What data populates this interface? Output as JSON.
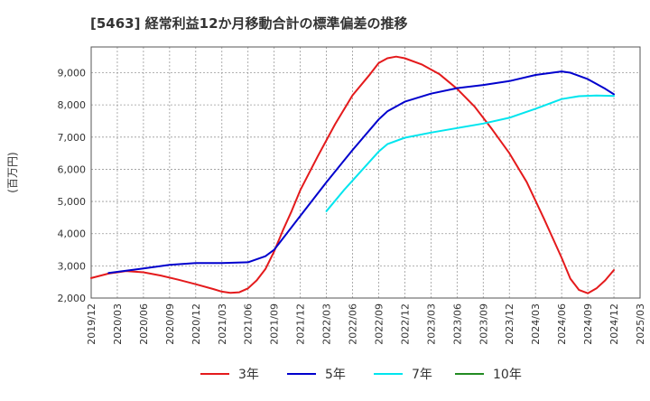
{
  "chart_data": {
    "type": "line",
    "title": "[5463]  経常利益12か月移動合計の標準偏差の推移",
    "ylabel": "(百万円)",
    "xlabel": "",
    "ylim": [
      2000,
      9800
    ],
    "yticks": [
      2000,
      3000,
      4000,
      5000,
      6000,
      7000,
      8000,
      9000
    ],
    "ytick_labels": [
      "2,000",
      "3,000",
      "4,000",
      "5,000",
      "6,000",
      "7,000",
      "8,000",
      "9,000"
    ],
    "xlim": [
      "2019-12",
      "2025-03"
    ],
    "xticks": [
      "2019/12",
      "2020/03",
      "2020/06",
      "2020/09",
      "2020/12",
      "2021/03",
      "2021/06",
      "2021/09",
      "2021/12",
      "2022/03",
      "2022/06",
      "2022/09",
      "2022/12",
      "2023/03",
      "2023/06",
      "2023/09",
      "2023/12",
      "2024/03",
      "2024/06",
      "2024/09",
      "2024/12",
      "2025/03"
    ],
    "grid": true,
    "legend_position": "bottom",
    "series": [
      {
        "name": "3年",
        "color": "#e41a1c",
        "points": [
          [
            "2019-12",
            2620
          ],
          [
            "2020-02",
            2760
          ],
          [
            "2020-04",
            2840
          ],
          [
            "2020-06",
            2800
          ],
          [
            "2020-08",
            2700
          ],
          [
            "2020-10",
            2570
          ],
          [
            "2020-12",
            2430
          ],
          [
            "2021-02",
            2280
          ],
          [
            "2021-03",
            2200
          ],
          [
            "2021-04",
            2160
          ],
          [
            "2021-05",
            2180
          ],
          [
            "2021-06",
            2300
          ],
          [
            "2021-07",
            2550
          ],
          [
            "2021-08",
            2900
          ],
          [
            "2021-09",
            3450
          ],
          [
            "2021-10",
            4100
          ],
          [
            "2021-11",
            4700
          ],
          [
            "2021-12",
            5350
          ],
          [
            "2022-02",
            6400
          ],
          [
            "2022-04",
            7400
          ],
          [
            "2022-06",
            8300
          ],
          [
            "2022-08",
            8950
          ],
          [
            "2022-09",
            9300
          ],
          [
            "2022-10",
            9450
          ],
          [
            "2022-11",
            9500
          ],
          [
            "2022-12",
            9450
          ],
          [
            "2023-02",
            9250
          ],
          [
            "2023-04",
            8950
          ],
          [
            "2023-06",
            8500
          ],
          [
            "2023-08",
            7950
          ],
          [
            "2023-10",
            7250
          ],
          [
            "2023-12",
            6500
          ],
          [
            "2024-02",
            5600
          ],
          [
            "2024-04",
            4450
          ],
          [
            "2024-06",
            3250
          ],
          [
            "2024-07",
            2600
          ],
          [
            "2024-08",
            2250
          ],
          [
            "2024-09",
            2150
          ],
          [
            "2024-10",
            2300
          ],
          [
            "2024-11",
            2550
          ],
          [
            "2024-12",
            2870
          ]
        ]
      },
      {
        "name": "5年",
        "color": "#0000cd",
        "points": [
          [
            "2020-02",
            2780
          ],
          [
            "2020-06",
            2920
          ],
          [
            "2020-09",
            3030
          ],
          [
            "2020-12",
            3090
          ],
          [
            "2021-03",
            3090
          ],
          [
            "2021-06",
            3110
          ],
          [
            "2021-08",
            3300
          ],
          [
            "2021-09",
            3500
          ],
          [
            "2021-10",
            3850
          ],
          [
            "2021-12",
            4550
          ],
          [
            "2022-03",
            5600
          ],
          [
            "2022-06",
            6600
          ],
          [
            "2022-09",
            7550
          ],
          [
            "2022-10",
            7800
          ],
          [
            "2022-12",
            8100
          ],
          [
            "2023-03",
            8350
          ],
          [
            "2023-06",
            8520
          ],
          [
            "2023-09",
            8620
          ],
          [
            "2023-12",
            8740
          ],
          [
            "2024-03",
            8930
          ],
          [
            "2024-06",
            9040
          ],
          [
            "2024-07",
            9000
          ],
          [
            "2024-09",
            8800
          ],
          [
            "2024-11",
            8500
          ],
          [
            "2024-12",
            8330
          ]
        ]
      },
      {
        "name": "7年",
        "color": "#00e5ee",
        "points": [
          [
            "2022-03",
            4700
          ],
          [
            "2022-05",
            5350
          ],
          [
            "2022-07",
            5950
          ],
          [
            "2022-09",
            6550
          ],
          [
            "2022-10",
            6780
          ],
          [
            "2022-12",
            6980
          ],
          [
            "2023-03",
            7140
          ],
          [
            "2023-06",
            7280
          ],
          [
            "2023-09",
            7420
          ],
          [
            "2023-12",
            7600
          ],
          [
            "2024-03",
            7880
          ],
          [
            "2024-06",
            8180
          ],
          [
            "2024-08",
            8270
          ],
          [
            "2024-10",
            8290
          ],
          [
            "2024-12",
            8280
          ]
        ]
      },
      {
        "name": "10年",
        "color": "#228b22",
        "points": []
      }
    ]
  }
}
